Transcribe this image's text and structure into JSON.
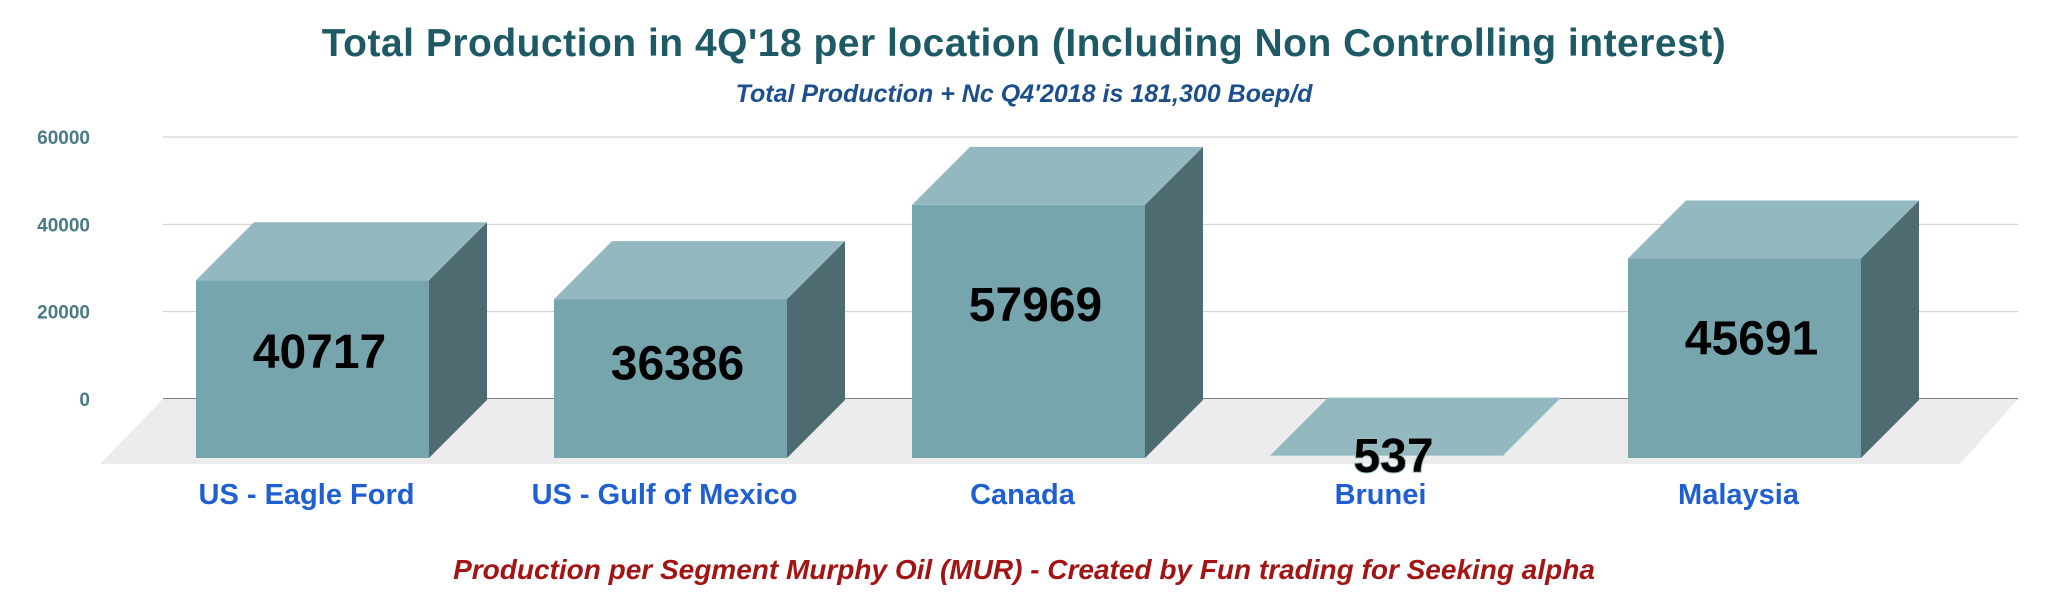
{
  "title": "Total Production in 4Q'18 per location (Including Non Controlling interest)",
  "subtitle": "Total Production + Nc Q4'2018 is 181,300 Boep/d",
  "footer": "Production per Segment Murphy Oil (MUR) - Created by Fun trading for Seeking alpha",
  "colors": {
    "title": "#1d5a66",
    "subtitle": "#1c4f8c",
    "footer": "#a31515",
    "bar_front": "#77a5ae",
    "bar_top": "#93b8bf",
    "bar_side": "#4e6b72",
    "category_label": "#1f5fd1",
    "tick_label": "#4a7a85"
  },
  "chart_data": {
    "type": "bar",
    "style": "3d",
    "categories": [
      "US - Eagle Ford",
      "US - Gulf of Mexico",
      "Canada",
      "Brunei",
      "Malaysia"
    ],
    "values": [
      40717,
      36386,
      57969,
      537,
      45691
    ],
    "data_labels": [
      "40717",
      "36386",
      "57969",
      "537",
      "45691"
    ],
    "y_ticks": [
      0,
      20000,
      40000,
      60000
    ],
    "y_tick_labels": [
      "0",
      "20000",
      "40000",
      "60000"
    ],
    "ylim": [
      0,
      60000
    ],
    "xlabel": "",
    "ylabel": "",
    "grid": true,
    "legend": "none"
  }
}
